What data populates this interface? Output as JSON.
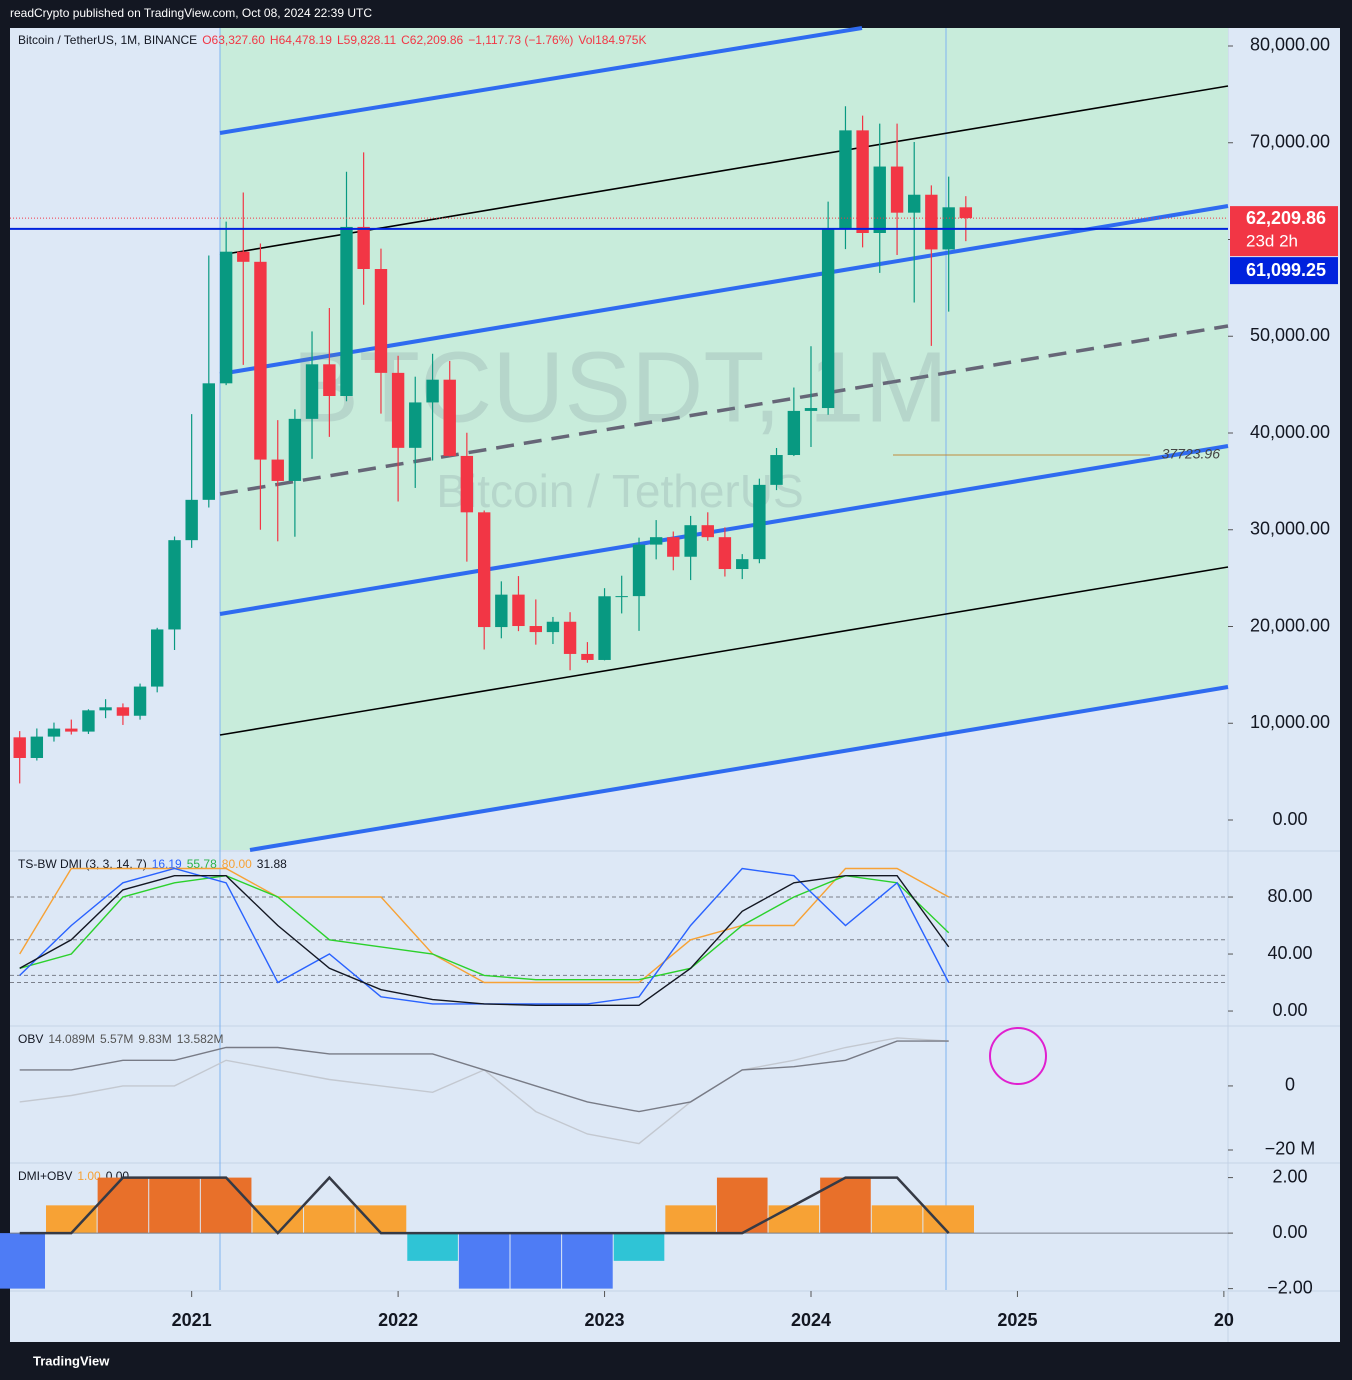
{
  "header": {
    "published": "readCrypto published on TradingView.com, Oct 08, 2024 22:39 UTC",
    "brand": "TradingView"
  },
  "chart_data": [
    {
      "type": "candlestick",
      "title": "Bitcoin / TetherUS, 1M, BINANCE",
      "legend": [
        {
          "text": "O63,327.60",
          "color": "#f23645"
        },
        {
          "text": "H64,478.19",
          "color": "#f23645"
        },
        {
          "text": "L59,828.11",
          "color": "#f23645"
        },
        {
          "text": "C62,209.86",
          "color": "#f23645"
        },
        {
          "text": "−1,117.73 (−1.76%)",
          "color": "#f23645"
        },
        {
          "text": "Vol184.975K",
          "color": "#f23645"
        }
      ],
      "watermark": [
        "BTCUSDT, 1M",
        "Bitcoin / TetherUS"
      ],
      "up_color": "#089981",
      "down_color": "#f23645",
      "x": [
        2020.167,
        2020.25,
        2020.333,
        2020.417,
        2020.5,
        2020.583,
        2020.667,
        2020.75,
        2020.833,
        2020.917,
        2021.0,
        2021.083,
        2021.167,
        2021.25,
        2021.333,
        2021.417,
        2021.5,
        2021.583,
        2021.667,
        2021.75,
        2021.833,
        2021.917,
        2022.0,
        2022.083,
        2022.167,
        2022.25,
        2022.333,
        2022.417,
        2022.5,
        2022.583,
        2022.667,
        2022.75,
        2022.833,
        2022.917,
        2023.0,
        2023.083,
        2023.167,
        2023.25,
        2023.333,
        2023.417,
        2023.5,
        2023.583,
        2023.667,
        2023.75,
        2023.833,
        2023.917,
        2024.0,
        2024.083,
        2024.167,
        2024.25,
        2024.333,
        2024.417,
        2024.5,
        2024.583,
        2024.667,
        2024.75
      ],
      "open": [
        8545,
        6410,
        8620,
        9448,
        9138,
        11335,
        11649,
        10776,
        13791,
        19695,
        28923,
        33092,
        45135,
        58740,
        57694,
        37253,
        35045,
        41462,
        47100,
        43824,
        61299,
        56950,
        46216,
        38466,
        43160,
        45510,
        37630,
        31801,
        19942,
        23296,
        20049,
        19423,
        20490,
        17165,
        16542,
        23125,
        23141,
        28465,
        29233,
        27210,
        30472,
        29232,
        25940,
        26962,
        34640,
        37723.96,
        42283,
        42580,
        61131,
        71280,
        60672,
        67540,
        62772,
        64628,
        58974,
        63327.6
      ],
      "high": [
        9188,
        9460,
        10067,
        10380,
        11444,
        12486,
        12050,
        14100,
        19863,
        29300,
        41950,
        58352,
        61844,
        64854,
        59592,
        41330,
        42448,
        50500,
        52920,
        67000,
        69000,
        59053,
        47990,
        45821,
        48189,
        47444,
        40023,
        31986,
        24668,
        25211,
        22799,
        20988,
        21480,
        18388,
        23960,
        25250,
        29184,
        31000,
        29820,
        31431,
        31804,
        30244,
        27483,
        35280,
        38450,
        44700,
        48969,
        63913,
        73777,
        72797,
        71979,
        71980,
        70079,
        65593,
        66498,
        64478.19
      ],
      "low": [
        3782,
        6150,
        8106,
        8833,
        8893,
        10525,
        9825,
        10374,
        13195,
        17572,
        28130,
        32296,
        44950,
        47044,
        30000,
        28805,
        29278,
        37332,
        39600,
        43283,
        53256,
        42000,
        32917,
        34322,
        37155,
        37578,
        26700,
        17622,
        18781,
        19520,
        18125,
        18190,
        15476,
        16256,
        16499,
        21351,
        19549,
        26942,
        25811,
        24800,
        28861,
        25166,
        24901,
        26538,
        34097,
        37617,
        38555,
        41884,
        59005,
        59191,
        56552,
        58402,
        53485,
        49000,
        52550,
        59828.11
      ],
      "close": [
        6410,
        8620,
        9448,
        9138,
        11335,
        11649,
        10776,
        13791,
        19695,
        28923,
        33092,
        45135,
        58740,
        57694,
        37253,
        35045,
        41462,
        47100,
        43824,
        61299,
        56950,
        46216,
        38466,
        43160,
        45510,
        37630,
        31801,
        19942,
        23293,
        20050,
        19423,
        20491,
        17164,
        16542,
        23125,
        23141,
        28465,
        29233,
        27210,
        30472,
        29232,
        25940,
        26962,
        34639,
        37723.96,
        42283,
        42580,
        61130,
        71280,
        60672,
        67540,
        62772,
        64628,
        58973,
        63327.6,
        62209.86
      ],
      "xlim": [
        2020.12,
        2026.02
      ],
      "xticks": [
        2021,
        2022,
        2023,
        2024,
        2025,
        {
          "value": 2026,
          "label": "20"
        }
      ],
      "ylim": [
        -3100,
        81860
      ],
      "yticks": [
        {
          "value": 0,
          "label": "0.00"
        },
        {
          "value": 10000,
          "label": "10,000.00"
        },
        {
          "value": 20000,
          "label": "20,000.00"
        },
        {
          "value": 30000,
          "label": "30,000.00"
        },
        {
          "value": 40000,
          "label": "40,000.00"
        },
        {
          "value": 50000,
          "label": "50,000.00"
        },
        {
          "value": 60000,
          "label": "60,000.00"
        },
        {
          "value": 70000,
          "label": "70,000.00"
        },
        {
          "value": 80000,
          "label": "80,000.00"
        }
      ],
      "last_price": {
        "value": 62209.86,
        "label": "62,209.86"
      },
      "countdown": "23d 2h",
      "level": {
        "value": 61099.25,
        "label": "61,099.25",
        "color": "#0022dd"
      },
      "annotation": {
        "value": 37723.96,
        "label": "37723.96"
      }
    },
    {
      "type": "line",
      "title": "TS-BW DMI (3, 3, 14, 7)",
      "legend": [
        {
          "text": "16.19",
          "color": "#2962ff"
        },
        {
          "text": "55.78",
          "color": "#2bb24c"
        },
        {
          "text": "80.00",
          "color": "#f7a235"
        },
        {
          "text": "31.88",
          "color": "#131722"
        }
      ],
      "x": [
        2020.167,
        2020.417,
        2020.667,
        2020.917,
        2021.167,
        2021.417,
        2021.667,
        2021.917,
        2022.167,
        2022.417,
        2022.667,
        2022.917,
        2023.167,
        2023.417,
        2023.667,
        2023.917,
        2024.167,
        2024.417,
        2024.667
      ],
      "series": [
        {
          "color": "#f7a235",
          "values": [
            40,
            100,
            100,
            100,
            100,
            80,
            80,
            80,
            40,
            20,
            20,
            20,
            20,
            50,
            60,
            60,
            100,
            100,
            80
          ]
        },
        {
          "color": "#2bd12b",
          "values": [
            30,
            40,
            80,
            90,
            95,
            80,
            50,
            45,
            40,
            25,
            22,
            22,
            22,
            30,
            60,
            80,
            95,
            90,
            55
          ]
        },
        {
          "color": "#2962ff",
          "values": [
            25,
            60,
            90,
            100,
            90,
            20,
            40,
            10,
            5,
            5,
            5,
            5,
            10,
            60,
            100,
            95,
            60,
            90,
            20
          ]
        },
        {
          "color": "#131722",
          "values": [
            30,
            50,
            85,
            95,
            95,
            60,
            30,
            15,
            8,
            5,
            4,
            4,
            4,
            30,
            70,
            90,
            95,
            95,
            45
          ]
        }
      ],
      "levels": [
        80,
        50,
        25,
        20
      ],
      "xlim": [
        2020.12,
        2026.02
      ],
      "ylim": [
        -9.8,
        111.6
      ],
      "yticks": [
        {
          "value": 0,
          "label": "0.00"
        },
        {
          "value": 40,
          "label": "40.00"
        },
        {
          "value": 80,
          "label": "80.00"
        }
      ]
    },
    {
      "type": "line",
      "title": "OBV",
      "legend": [
        {
          "text": "14.089M",
          "color": "#555"
        },
        {
          "text": "5.57M",
          "color": "#555"
        },
        {
          "text": "9.83M",
          "color": "#555"
        },
        {
          "text": "13.582M",
          "color": "#555"
        }
      ],
      "x": [
        2020.167,
        2020.417,
        2020.667,
        2020.917,
        2021.167,
        2021.417,
        2021.667,
        2021.917,
        2022.167,
        2022.417,
        2022.667,
        2022.917,
        2023.167,
        2023.417,
        2023.667,
        2023.917,
        2024.167,
        2024.417,
        2024.667
      ],
      "series": [
        {
          "color": "#c3c8d0",
          "values": [
            -5,
            -3,
            0,
            0,
            8,
            5,
            2,
            0,
            -2,
            5,
            -8,
            -15,
            -18,
            -5,
            5,
            8,
            12,
            15,
            14
          ]
        },
        {
          "color": "#787b86",
          "values": [
            5,
            5,
            8,
            8,
            12,
            12,
            10,
            10,
            10,
            5,
            0,
            -5,
            -8,
            -5,
            5,
            6,
            8,
            14,
            14
          ]
        }
      ],
      "xlim": [
        2020.12,
        2026.02
      ],
      "ylim": [
        -23.75,
        18.4
      ],
      "yticks": [
        0,
        {
          "value": -20,
          "label": "−20 M"
        }
      ]
    },
    {
      "type": "bar",
      "title": "DMI+OBV",
      "legend": [
        {
          "text": "1.00",
          "color": "#f7a235"
        },
        {
          "text": "0.00",
          "color": "#131722"
        }
      ],
      "x": [
        2020.167,
        2020.417,
        2020.667,
        2020.917,
        2021.167,
        2021.417,
        2021.667,
        2021.917,
        2022.167,
        2022.417,
        2022.667,
        2022.917,
        2023.167,
        2023.417,
        2023.667,
        2023.917,
        2024.167,
        2024.417,
        2024.667
      ],
      "values": [
        -2,
        1,
        2,
        2,
        2,
        1,
        1,
        1,
        -1,
        -2,
        -2,
        -2,
        -1,
        1,
        2,
        1,
        2,
        1,
        1
      ],
      "bar_colors": {
        "2": "#e8702a",
        "1": "#f7a235",
        "-1": "#2fc4d6",
        "-2": "#4e7cf5"
      },
      "line": {
        "color": "#363a45",
        "values": [
          0,
          0,
          2,
          2,
          2,
          0,
          2,
          0,
          0,
          0,
          0,
          0,
          0,
          0,
          0,
          1,
          2,
          2,
          0
        ]
      },
      "xlim": [
        2020.12,
        2026.02
      ],
      "ylim": [
        -2.05,
        2.49
      ],
      "yticks": [
        {
          "value": -2,
          "label": "−2.00"
        },
        {
          "value": 0,
          "label": "0.00"
        },
        {
          "value": 2,
          "label": "2.00"
        }
      ]
    }
  ]
}
